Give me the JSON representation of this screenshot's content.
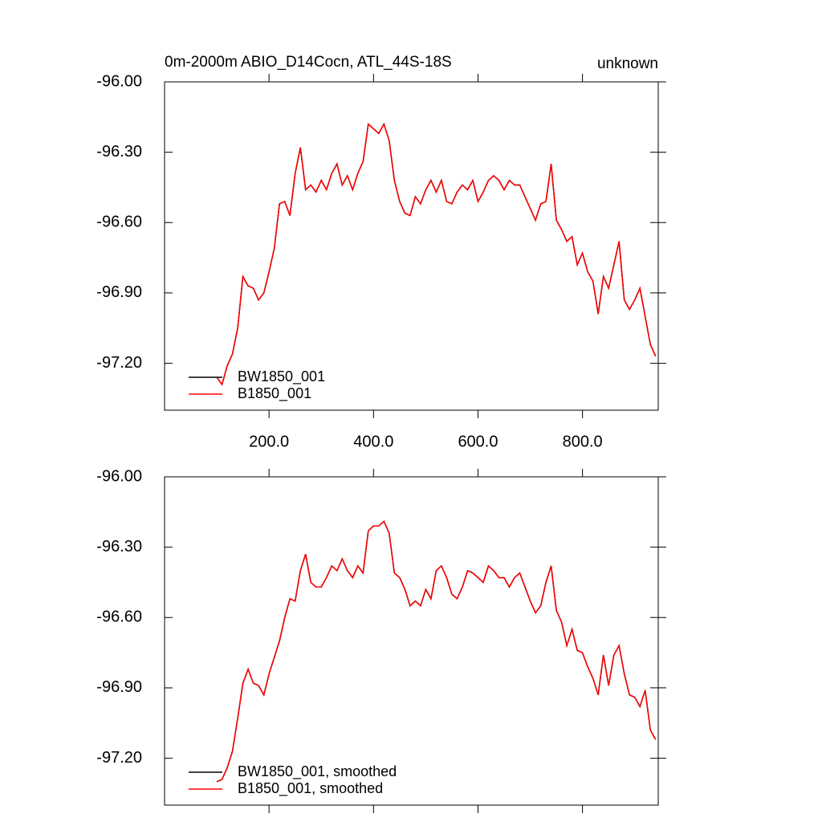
{
  "chart_data": [
    {
      "type": "line",
      "title": "0m-2000m ABIO_D14Cocn, ATL_44S-18S",
      "subtitle": "unknown",
      "x": [
        100,
        110,
        120,
        130,
        140,
        150,
        160,
        170,
        180,
        190,
        200,
        210,
        220,
        230,
        240,
        250,
        260,
        270,
        280,
        290,
        300,
        310,
        320,
        330,
        340,
        350,
        360,
        370,
        380,
        390,
        400,
        410,
        420,
        430,
        440,
        450,
        460,
        470,
        480,
        490,
        500,
        510,
        520,
        530,
        540,
        550,
        560,
        570,
        580,
        590,
        600,
        610,
        620,
        630,
        640,
        650,
        660,
        670,
        680,
        690,
        700,
        710,
        720,
        730,
        740,
        750,
        760,
        770,
        780,
        790,
        800,
        810,
        820,
        830,
        840,
        850,
        860,
        870,
        880,
        890,
        900,
        910,
        920,
        930,
        940
      ],
      "series": [
        {
          "name": "BW1850_001",
          "color": "#000000",
          "values": [
            -97.26,
            -97.29,
            -97.21,
            -97.16,
            -97.05,
            -96.83,
            -96.87,
            -96.88,
            -96.93,
            -96.9,
            -96.81,
            -96.71,
            -96.52,
            -96.51,
            -96.57,
            -96.39,
            -96.28,
            -96.46,
            -96.44,
            -96.47,
            -96.42,
            -96.46,
            -96.39,
            -96.35,
            -96.44,
            -96.4,
            -96.46,
            -96.39,
            -96.34,
            -96.18,
            -96.2,
            -96.22,
            -96.18,
            -96.25,
            -96.42,
            -96.51,
            -96.56,
            -96.57,
            -96.49,
            -96.52,
            -96.46,
            -96.42,
            -96.47,
            -96.42,
            -96.51,
            -96.52,
            -96.47,
            -96.44,
            -96.46,
            -96.42,
            -96.51,
            -96.47,
            -96.42,
            -96.4,
            -96.42,
            -96.46,
            -96.42,
            -96.44,
            -96.44,
            -96.49,
            -96.54,
            -96.59,
            -96.52,
            -96.51,
            -96.35,
            -96.59,
            -96.63,
            -96.68,
            -96.66,
            -96.78,
            -96.73,
            -96.81,
            -96.85,
            -96.99,
            -96.83,
            -96.88,
            -96.78,
            -96.68,
            -96.93,
            -96.97,
            -96.93,
            -96.88,
            -97.0,
            -97.12,
            -97.17
          ]
        },
        {
          "name": "B1850_001",
          "color": "#ff0000",
          "values": [
            -97.26,
            -97.29,
            -97.21,
            -97.16,
            -97.05,
            -96.83,
            -96.87,
            -96.88,
            -96.93,
            -96.9,
            -96.81,
            -96.71,
            -96.52,
            -96.51,
            -96.57,
            -96.39,
            -96.28,
            -96.46,
            -96.44,
            -96.47,
            -96.42,
            -96.46,
            -96.39,
            -96.35,
            -96.44,
            -96.4,
            -96.46,
            -96.39,
            -96.34,
            -96.18,
            -96.2,
            -96.22,
            -96.18,
            -96.25,
            -96.42,
            -96.51,
            -96.56,
            -96.57,
            -96.49,
            -96.52,
            -96.46,
            -96.42,
            -96.47,
            -96.42,
            -96.51,
            -96.52,
            -96.47,
            -96.44,
            -96.46,
            -96.42,
            -96.51,
            -96.47,
            -96.42,
            -96.4,
            -96.42,
            -96.46,
            -96.42,
            -96.44,
            -96.44,
            -96.49,
            -96.54,
            -96.59,
            -96.52,
            -96.51,
            -96.35,
            -96.59,
            -96.63,
            -96.68,
            -96.66,
            -96.78,
            -96.73,
            -96.81,
            -96.85,
            -96.99,
            -96.83,
            -96.88,
            -96.78,
            -96.68,
            -96.93,
            -96.97,
            -96.93,
            -96.88,
            -97.0,
            -97.12,
            -97.17
          ]
        }
      ],
      "xlim": [
        0,
        945
      ],
      "ylim": [
        -97.4,
        -96.0
      ],
      "xticks": [
        {
          "value": 200,
          "label": "200.0"
        },
        {
          "value": 400,
          "label": "400.0"
        },
        {
          "value": 600,
          "label": "600.0"
        },
        {
          "value": 800,
          "label": "800.0"
        }
      ],
      "yticks": [
        {
          "value": -96.0,
          "label": "-96.00"
        },
        {
          "value": -96.3,
          "label": "-96.30"
        },
        {
          "value": -96.6,
          "label": "-96.60"
        },
        {
          "value": -96.9,
          "label": "-96.90"
        },
        {
          "value": -97.2,
          "label": "-97.20"
        }
      ],
      "legend": "lower-left"
    },
    {
      "type": "line",
      "x": [
        100,
        110,
        120,
        130,
        140,
        150,
        160,
        170,
        180,
        190,
        200,
        210,
        220,
        230,
        240,
        250,
        260,
        270,
        280,
        290,
        300,
        310,
        320,
        330,
        340,
        350,
        360,
        370,
        380,
        390,
        400,
        410,
        420,
        430,
        440,
        450,
        460,
        470,
        480,
        490,
        500,
        510,
        520,
        530,
        540,
        550,
        560,
        570,
        580,
        590,
        600,
        610,
        620,
        630,
        640,
        650,
        660,
        670,
        680,
        690,
        700,
        710,
        720,
        730,
        740,
        750,
        760,
        770,
        780,
        790,
        800,
        810,
        820,
        830,
        840,
        850,
        860,
        870,
        880,
        890,
        900,
        910,
        920,
        930,
        940
      ],
      "series": [
        {
          "name": "BW1850_001, smoothed",
          "color": "#000000",
          "values": [
            -97.3,
            -97.29,
            -97.24,
            -97.17,
            -97.03,
            -96.88,
            -96.82,
            -96.88,
            -96.89,
            -96.93,
            -96.84,
            -96.77,
            -96.7,
            -96.6,
            -96.52,
            -96.53,
            -96.4,
            -96.33,
            -96.45,
            -96.47,
            -96.47,
            -96.43,
            -96.38,
            -96.4,
            -96.35,
            -96.4,
            -96.43,
            -96.38,
            -96.41,
            -96.23,
            -96.21,
            -96.21,
            -96.19,
            -96.24,
            -96.41,
            -96.43,
            -96.48,
            -96.55,
            -96.53,
            -96.55,
            -96.48,
            -96.52,
            -96.4,
            -96.38,
            -96.43,
            -96.5,
            -96.52,
            -96.47,
            -96.4,
            -96.41,
            -96.43,
            -96.45,
            -96.38,
            -96.4,
            -96.43,
            -96.43,
            -96.47,
            -96.43,
            -96.41,
            -96.47,
            -96.53,
            -96.58,
            -96.55,
            -96.45,
            -96.38,
            -96.57,
            -96.62,
            -96.72,
            -96.65,
            -96.74,
            -96.75,
            -96.81,
            -96.86,
            -96.93,
            -96.76,
            -96.89,
            -96.76,
            -96.72,
            -96.84,
            -96.93,
            -96.94,
            -96.98,
            -96.91,
            -97.08,
            -97.12
          ]
        },
        {
          "name": "B1850_001, smoothed",
          "color": "#ff0000",
          "values": [
            -97.3,
            -97.29,
            -97.24,
            -97.17,
            -97.03,
            -96.88,
            -96.82,
            -96.88,
            -96.89,
            -96.93,
            -96.84,
            -96.77,
            -96.7,
            -96.6,
            -96.52,
            -96.53,
            -96.4,
            -96.33,
            -96.45,
            -96.47,
            -96.47,
            -96.43,
            -96.38,
            -96.4,
            -96.35,
            -96.4,
            -96.43,
            -96.38,
            -96.41,
            -96.23,
            -96.21,
            -96.21,
            -96.19,
            -96.24,
            -96.41,
            -96.43,
            -96.48,
            -96.55,
            -96.53,
            -96.55,
            -96.48,
            -96.52,
            -96.4,
            -96.38,
            -96.43,
            -96.5,
            -96.52,
            -96.47,
            -96.4,
            -96.41,
            -96.43,
            -96.45,
            -96.38,
            -96.4,
            -96.43,
            -96.43,
            -96.47,
            -96.43,
            -96.41,
            -96.47,
            -96.53,
            -96.58,
            -96.55,
            -96.45,
            -96.38,
            -96.57,
            -96.62,
            -96.72,
            -96.65,
            -96.74,
            -96.75,
            -96.81,
            -96.86,
            -96.93,
            -96.76,
            -96.89,
            -96.76,
            -96.72,
            -96.84,
            -96.93,
            -96.94,
            -96.98,
            -96.91,
            -97.08,
            -97.12
          ]
        }
      ],
      "xlim": [
        0,
        945
      ],
      "ylim": [
        -97.4,
        -96.0
      ],
      "yticks": [
        {
          "value": -96.0,
          "label": "-96.00"
        },
        {
          "value": -96.3,
          "label": "-96.30"
        },
        {
          "value": -96.6,
          "label": "-96.60"
        },
        {
          "value": -96.9,
          "label": "-96.90"
        },
        {
          "value": -97.2,
          "label": "-97.20"
        }
      ],
      "legend": "lower-left"
    }
  ]
}
